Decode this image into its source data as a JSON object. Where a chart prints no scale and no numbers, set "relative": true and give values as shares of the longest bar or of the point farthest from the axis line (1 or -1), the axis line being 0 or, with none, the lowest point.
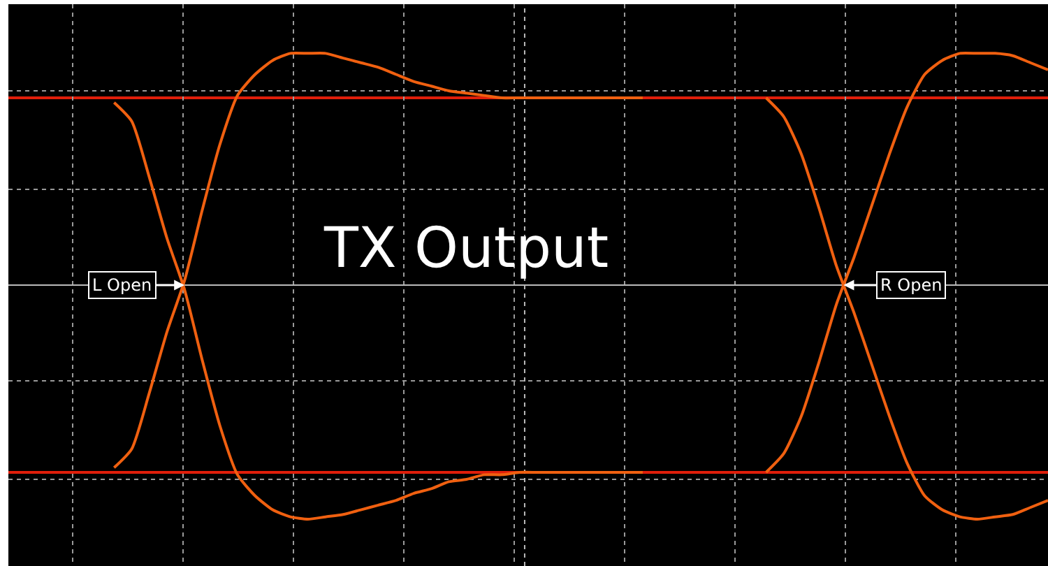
{
  "chart_data": {
    "type": "line",
    "relative": true,
    "grid": true,
    "categories": [
      null,
      null,
      null,
      null,
      null,
      null,
      null,
      null,
      null,
      null,
      null,
      null,
      null,
      null,
      null,
      null,
      null,
      null,
      null,
      null,
      null,
      null,
      null,
      null,
      null,
      null,
      null,
      null,
      null,
      null,
      null,
      null,
      null,
      null,
      null,
      null,
      null,
      null,
      null,
      null,
      null,
      null,
      null,
      null,
      null,
      null,
      null,
      null,
      null,
      null,
      null,
      null,
      null,
      null,
      null,
      null,
      null,
      null,
      null,
      null
    ],
    "series": [
      {
        "color": "#f06010",
        "values": [
          null,
          null,
          null,
          null,
          null,
          null,
          0.78,
          0.7,
          0.46,
          0.2,
          -0.02,
          -0.32,
          -0.6,
          -0.81,
          -0.9,
          -0.96,
          -0.99,
          -1.0,
          -0.99,
          -0.98,
          -0.96,
          -0.94,
          -0.92,
          -0.89,
          -0.87,
          -0.84,
          -0.83,
          -0.81,
          -0.81,
          -0.8,
          -0.8,
          -0.8,
          -0.8,
          -0.8,
          -0.8,
          -0.8,
          -0.8,
          null,
          null,
          null,
          null,
          null,
          null,
          null,
          null,
          null,
          null,
          null,
          null,
          null,
          null,
          null,
          null,
          null,
          null,
          null,
          null,
          null,
          null,
          null
        ]
      },
      {
        "color": "#f06010",
        "values": [
          null,
          null,
          null,
          null,
          null,
          null,
          -0.78,
          -0.7,
          -0.46,
          -0.2,
          0.02,
          0.32,
          0.6,
          0.81,
          0.9,
          0.96,
          0.99,
          0.99,
          0.99,
          0.97,
          0.95,
          0.93,
          0.9,
          0.87,
          0.85,
          0.83,
          0.82,
          0.81,
          0.8,
          0.8,
          0.8,
          0.8,
          0.8,
          0.8,
          0.8,
          0.8,
          0.8,
          null,
          null,
          null,
          null,
          null,
          null,
          null,
          null,
          null,
          null,
          null,
          null,
          null,
          null,
          null,
          null,
          null,
          null,
          null,
          null,
          null,
          null,
          null
        ]
      },
      {
        "color": "#f06010",
        "values": [
          null,
          null,
          null,
          null,
          null,
          null,
          null,
          null,
          null,
          null,
          null,
          null,
          null,
          null,
          null,
          null,
          null,
          null,
          null,
          null,
          null,
          null,
          null,
          null,
          null,
          null,
          null,
          null,
          null,
          null,
          null,
          null,
          null,
          null,
          null,
          null,
          null,
          null,
          null,
          null,
          null,
          null,
          null,
          0.8,
          0.72,
          0.56,
          0.33,
          0.08,
          -0.12,
          -0.34,
          -0.56,
          -0.76,
          -0.9,
          -0.96,
          -0.99,
          -1.0,
          -0.99,
          -0.98,
          -0.95,
          -0.92
        ]
      },
      {
        "color": "#f06010",
        "values": [
          null,
          null,
          null,
          null,
          null,
          null,
          null,
          null,
          null,
          null,
          null,
          null,
          null,
          null,
          null,
          null,
          null,
          null,
          null,
          null,
          null,
          null,
          null,
          null,
          null,
          null,
          null,
          null,
          null,
          null,
          null,
          null,
          null,
          null,
          null,
          null,
          null,
          null,
          null,
          null,
          null,
          null,
          null,
          -0.8,
          -0.72,
          -0.56,
          -0.33,
          -0.08,
          0.12,
          0.34,
          0.56,
          0.76,
          0.9,
          0.96,
          0.99,
          0.99,
          0.99,
          0.98,
          0.95,
          0.92
        ]
      }
    ],
    "ref_lines": [
      {
        "axis": "y",
        "value": 0.8,
        "color": "#e01e0a"
      },
      {
        "axis": "y",
        "value": -0.8,
        "color": "#e01e0a"
      }
    ],
    "annotations": [
      "TX Output",
      "L Open",
      "R Open"
    ]
  }
}
